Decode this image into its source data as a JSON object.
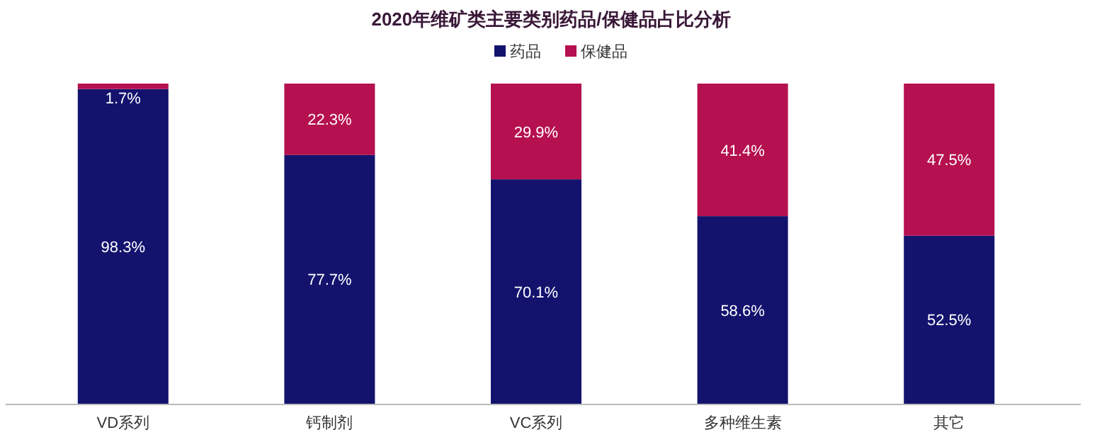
{
  "chart_data": {
    "type": "bar",
    "title": "2020年维矿类主要类别药品/保健品占比分析",
    "categories": [
      "VD系列",
      "钙制剂",
      "VC系列",
      "多种维生素",
      "其它"
    ],
    "stacked": true,
    "legend": "top",
    "series": [
      {
        "name": "药品",
        "color": "#13136e",
        "values": [
          98.3,
          77.7,
          70.1,
          58.6,
          52.5
        ],
        "value_labels": [
          "98.3%",
          "77.7%",
          "70.1%",
          "58.6%",
          "52.5%"
        ]
      },
      {
        "name": "保健品",
        "color": "#b5104f",
        "values": [
          1.7,
          22.3,
          29.9,
          41.4,
          47.5
        ],
        "value_labels": [
          "1.7%",
          "22.3%",
          "29.9%",
          "41.4%",
          "47.5%"
        ]
      }
    ]
  }
}
